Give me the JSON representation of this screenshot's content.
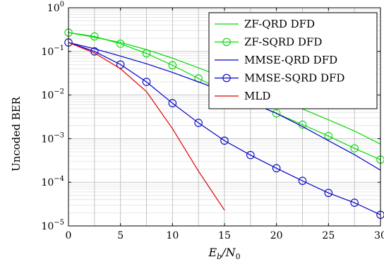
{
  "chart_data": {
    "type": "line",
    "xlabel_main": "E",
    "xlabel_sub1": "b",
    "xlabel_mid": "/N",
    "xlabel_sub2": "0",
    "ylabel": "Uncoded BER",
    "xlim": [
      0,
      30
    ],
    "ylim": [
      1e-05,
      1
    ],
    "yscale": "log",
    "grid": true,
    "legend_position": "top-right",
    "x_ticks": [
      0,
      5,
      10,
      15,
      20,
      25,
      30
    ],
    "x_tick_labels": [
      "0",
      "5",
      "10",
      "15",
      "20",
      "25",
      "30"
    ],
    "y_ticks": [
      {
        "value": 1,
        "base": "10",
        "exp": "0"
      },
      {
        "value": 0.1,
        "base": "10",
        "exp": "−1"
      },
      {
        "value": 0.01,
        "base": "10",
        "exp": "−2"
      },
      {
        "value": 0.001,
        "base": "10",
        "exp": "−3"
      },
      {
        "value": 0.0001,
        "base": "10",
        "exp": "−4"
      },
      {
        "value": 1e-05,
        "base": "10",
        "exp": "−5"
      }
    ],
    "series": [
      {
        "name": "ZF-QRD DFD",
        "color": "#00dd00",
        "marker": "none",
        "x": [
          0,
          2.5,
          5,
          7.5,
          10,
          12.5,
          15,
          17.5,
          20,
          22.5,
          25,
          27.5,
          30
        ],
        "y": [
          0.27,
          0.21,
          0.16,
          0.11,
          0.07,
          0.042,
          0.025,
          0.0145,
          0.0085,
          0.0048,
          0.0027,
          0.0015,
          0.00075
        ]
      },
      {
        "name": "ZF-SQRD DFD",
        "color": "#00dd00",
        "marker": "circle",
        "x": [
          0,
          2.5,
          5,
          7.5,
          10,
          12.5,
          15,
          17.5,
          20,
          22.5,
          25,
          27.5,
          30
        ],
        "y": [
          0.27,
          0.22,
          0.15,
          0.09,
          0.048,
          0.024,
          0.012,
          0.0068,
          0.0038,
          0.0021,
          0.00115,
          0.0006,
          0.00033
        ]
      },
      {
        "name": "MMSE-QRD DFD",
        "color": "#0000cc",
        "marker": "none",
        "x": [
          0,
          2.5,
          5,
          7.5,
          10,
          12.5,
          15,
          17.5,
          20,
          22.5,
          25,
          27.5,
          30
        ],
        "y": [
          0.16,
          0.115,
          0.078,
          0.052,
          0.033,
          0.02,
          0.012,
          0.0068,
          0.0038,
          0.0019,
          0.0009,
          0.00043,
          0.00019
        ]
      },
      {
        "name": "MMSE-SQRD DFD",
        "color": "#0000cc",
        "marker": "circle",
        "x": [
          0,
          2.5,
          5,
          7.5,
          10,
          12.5,
          15,
          17.5,
          20,
          22.5,
          25,
          27.5,
          30
        ],
        "y": [
          0.16,
          0.1,
          0.05,
          0.02,
          0.0065,
          0.0023,
          0.0009,
          0.00042,
          0.00021,
          0.000108,
          5.7e-05,
          3.4e-05,
          1.8e-05
        ]
      },
      {
        "name": "MLD",
        "color": "#dd0000",
        "marker": "none",
        "x": [
          0,
          2.5,
          5,
          7.5,
          10,
          12.5,
          15
        ],
        "y": [
          0.16,
          0.092,
          0.04,
          0.012,
          0.0017,
          0.00018,
          2.3e-05
        ]
      }
    ]
  }
}
